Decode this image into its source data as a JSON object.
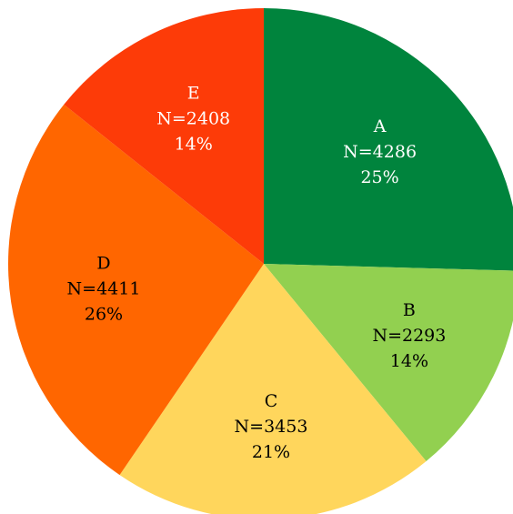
{
  "chart_data": {
    "type": "pie",
    "start": "12 o'clock",
    "direction": "clockwise",
    "slices": [
      {
        "name": "A",
        "value": 4286,
        "count_label": "N=4286",
        "pct_label": "25%",
        "color": "#00843d",
        "label_color": "#ffffff"
      },
      {
        "name": "B",
        "value": 2293,
        "count_label": "N=2293",
        "pct_label": "14%",
        "color": "#92d050",
        "label_color": "#000000"
      },
      {
        "name": "C",
        "value": 3453,
        "count_label": "N=3453",
        "pct_label": "21%",
        "color": "#ffd65c",
        "label_color": "#000000"
      },
      {
        "name": "D",
        "value": 4411,
        "count_label": "N=4411",
        "pct_label": "26%",
        "color": "#ff6600",
        "label_color": "#000000"
      },
      {
        "name": "E",
        "value": 2408,
        "count_label": "N=2408",
        "pct_label": "14%",
        "color": "#fd3b08",
        "label_color": "#ffffff"
      }
    ]
  }
}
